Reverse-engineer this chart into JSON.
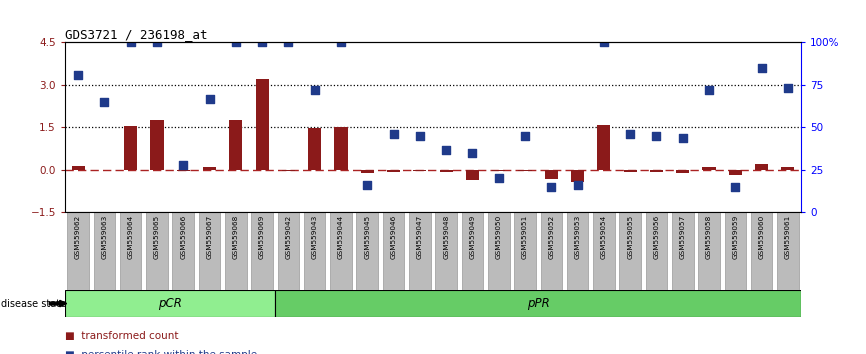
{
  "title": "GDS3721 / 236198_at",
  "samples": [
    "GSM559062",
    "GSM559063",
    "GSM559064",
    "GSM559065",
    "GSM559066",
    "GSM559067",
    "GSM559068",
    "GSM559069",
    "GSM559042",
    "GSM559043",
    "GSM559044",
    "GSM559045",
    "GSM559046",
    "GSM559047",
    "GSM559048",
    "GSM559049",
    "GSM559050",
    "GSM559051",
    "GSM559052",
    "GSM559053",
    "GSM559054",
    "GSM559055",
    "GSM559056",
    "GSM559057",
    "GSM559058",
    "GSM559059",
    "GSM559060",
    "GSM559061"
  ],
  "transformed_count": [
    0.15,
    -0.02,
    1.55,
    1.78,
    -0.05,
    0.1,
    1.78,
    3.2,
    -0.04,
    1.48,
    1.5,
    -0.12,
    -0.07,
    -0.05,
    -0.07,
    -0.35,
    -0.05,
    -0.05,
    -0.32,
    -0.42,
    1.6,
    -0.07,
    -0.07,
    -0.12,
    0.12,
    -0.18,
    0.2,
    0.1
  ],
  "percentile_rank": [
    81,
    65,
    100,
    100,
    28,
    67,
    100,
    100,
    100,
    72,
    100,
    16,
    46,
    45,
    37,
    35,
    20,
    45,
    15,
    16,
    100,
    46,
    45,
    44,
    72,
    15,
    85,
    73
  ],
  "pCR_count": 8,
  "pPR_count": 20,
  "left_ylim": [
    -1.5,
    4.5
  ],
  "right_ylim": [
    0,
    100
  ],
  "left_yticks": [
    -1.5,
    0.0,
    1.5,
    3.0,
    4.5
  ],
  "right_yticks": [
    0,
    25,
    50,
    75,
    100
  ],
  "right_yticklabels": [
    "0",
    "25",
    "50",
    "75",
    "100%"
  ],
  "hlines": [
    1.5,
    3.0
  ],
  "bar_color": "#8B1A1A",
  "dot_color": "#1F3A8A",
  "zero_line_color": "#AA2222",
  "pCR_color": "#90EE90",
  "pPR_color": "#66CC66",
  "label_bg_color": "#BBBBBB",
  "label_border_color": "#888888"
}
